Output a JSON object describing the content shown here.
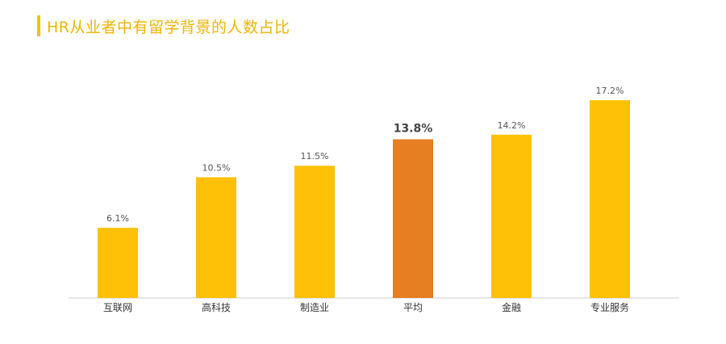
{
  "title": "HR从业者中有留学背景的人数占比",
  "colors": {
    "bar": "#FFC107",
    "highlight": "#E67E22",
    "title": "#F0B400",
    "axis": "#CCCCCC"
  },
  "chart_data": {
    "type": "bar",
    "title": "HR从业者中有留学背景的人数占比",
    "categories": [
      "互联网",
      "高科技",
      "制造业",
      "平均",
      "金融",
      "专业服务"
    ],
    "values": [
      6.1,
      10.5,
      11.5,
      13.8,
      14.2,
      17.2
    ],
    "value_labels": [
      "6.1%",
      "10.5%",
      "11.5%",
      "13.8%",
      "14.2%",
      "17.2%"
    ],
    "highlight_index": 3,
    "ylim": [
      0,
      20
    ],
    "grid": false,
    "legend": "none"
  }
}
